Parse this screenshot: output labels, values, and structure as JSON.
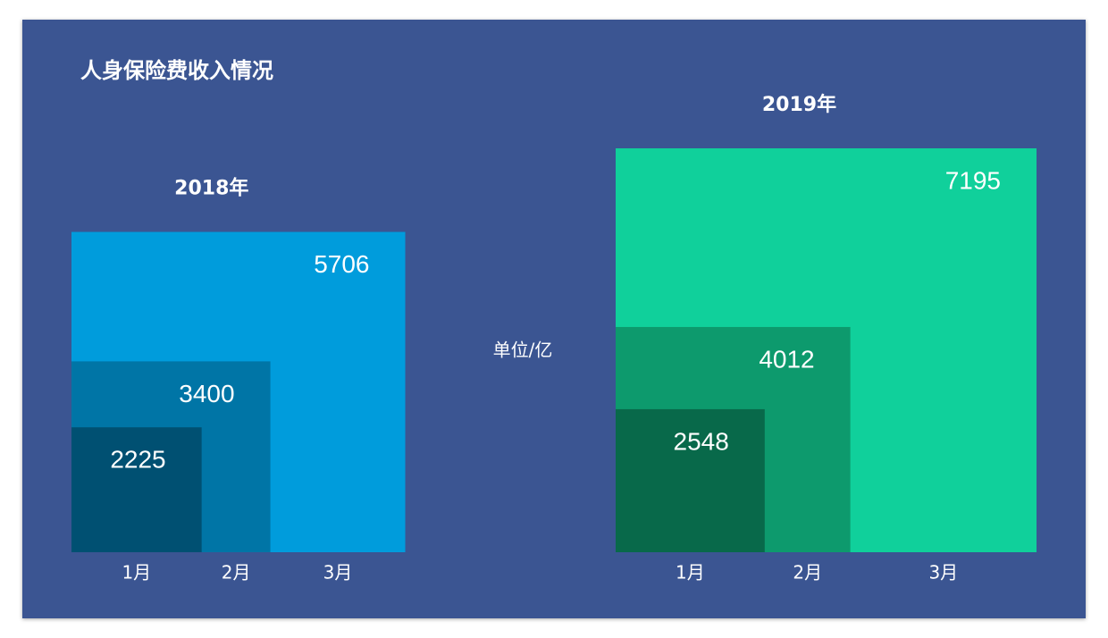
{
  "title": "人身保险费收入情况",
  "unit": "单位/亿",
  "chart_data": [
    {
      "type": "nested-square",
      "title": "2018年",
      "categories": [
        "1月",
        "2月",
        "3月"
      ],
      "values": [
        2225,
        3400,
        5706
      ],
      "colors": [
        "#005072",
        "#0075a6",
        "#009cdc"
      ]
    },
    {
      "type": "nested-square",
      "title": "2019年",
      "categories": [
        "1月",
        "2月",
        "3月"
      ],
      "values": [
        2548,
        4012,
        7195
      ],
      "colors": [
        "#08694a",
        "#0d9a6d",
        "#10d09b"
      ]
    }
  ]
}
